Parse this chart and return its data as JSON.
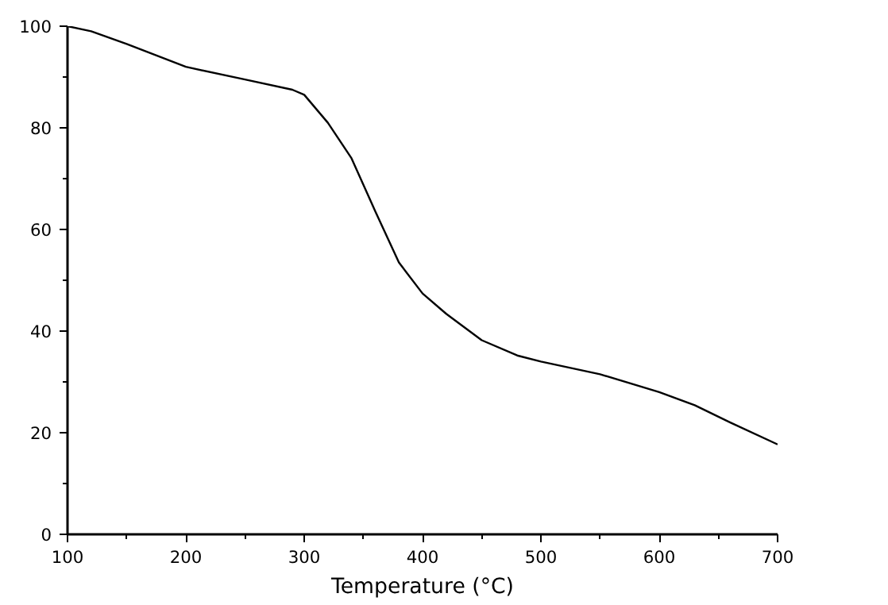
{
  "chart_data": {
    "type": "line",
    "xlabel": "Temperature (°C)",
    "x": [
      100,
      120,
      150,
      200,
      250,
      290,
      300,
      320,
      340,
      360,
      380,
      400,
      420,
      450,
      480,
      500,
      550,
      600,
      630,
      660,
      700
    ],
    "series": [
      {
        "color": "#000000",
        "values": [
          100,
          99,
          96.5,
          92,
          89.5,
          87.5,
          86.5,
          81,
          74,
          63.6,
          53.5,
          47.4,
          43.4,
          38.2,
          35.2,
          34,
          31.5,
          28,
          25.4,
          22,
          17.7
        ]
      }
    ],
    "xlim": [
      100,
      700
    ],
    "ylim": [
      0,
      100
    ],
    "xticks": [
      100,
      200,
      300,
      400,
      500,
      600,
      700
    ],
    "yticks": [
      0,
      20,
      40,
      60,
      80,
      100
    ],
    "grid": false,
    "marker": "none",
    "line_style": "solid"
  }
}
